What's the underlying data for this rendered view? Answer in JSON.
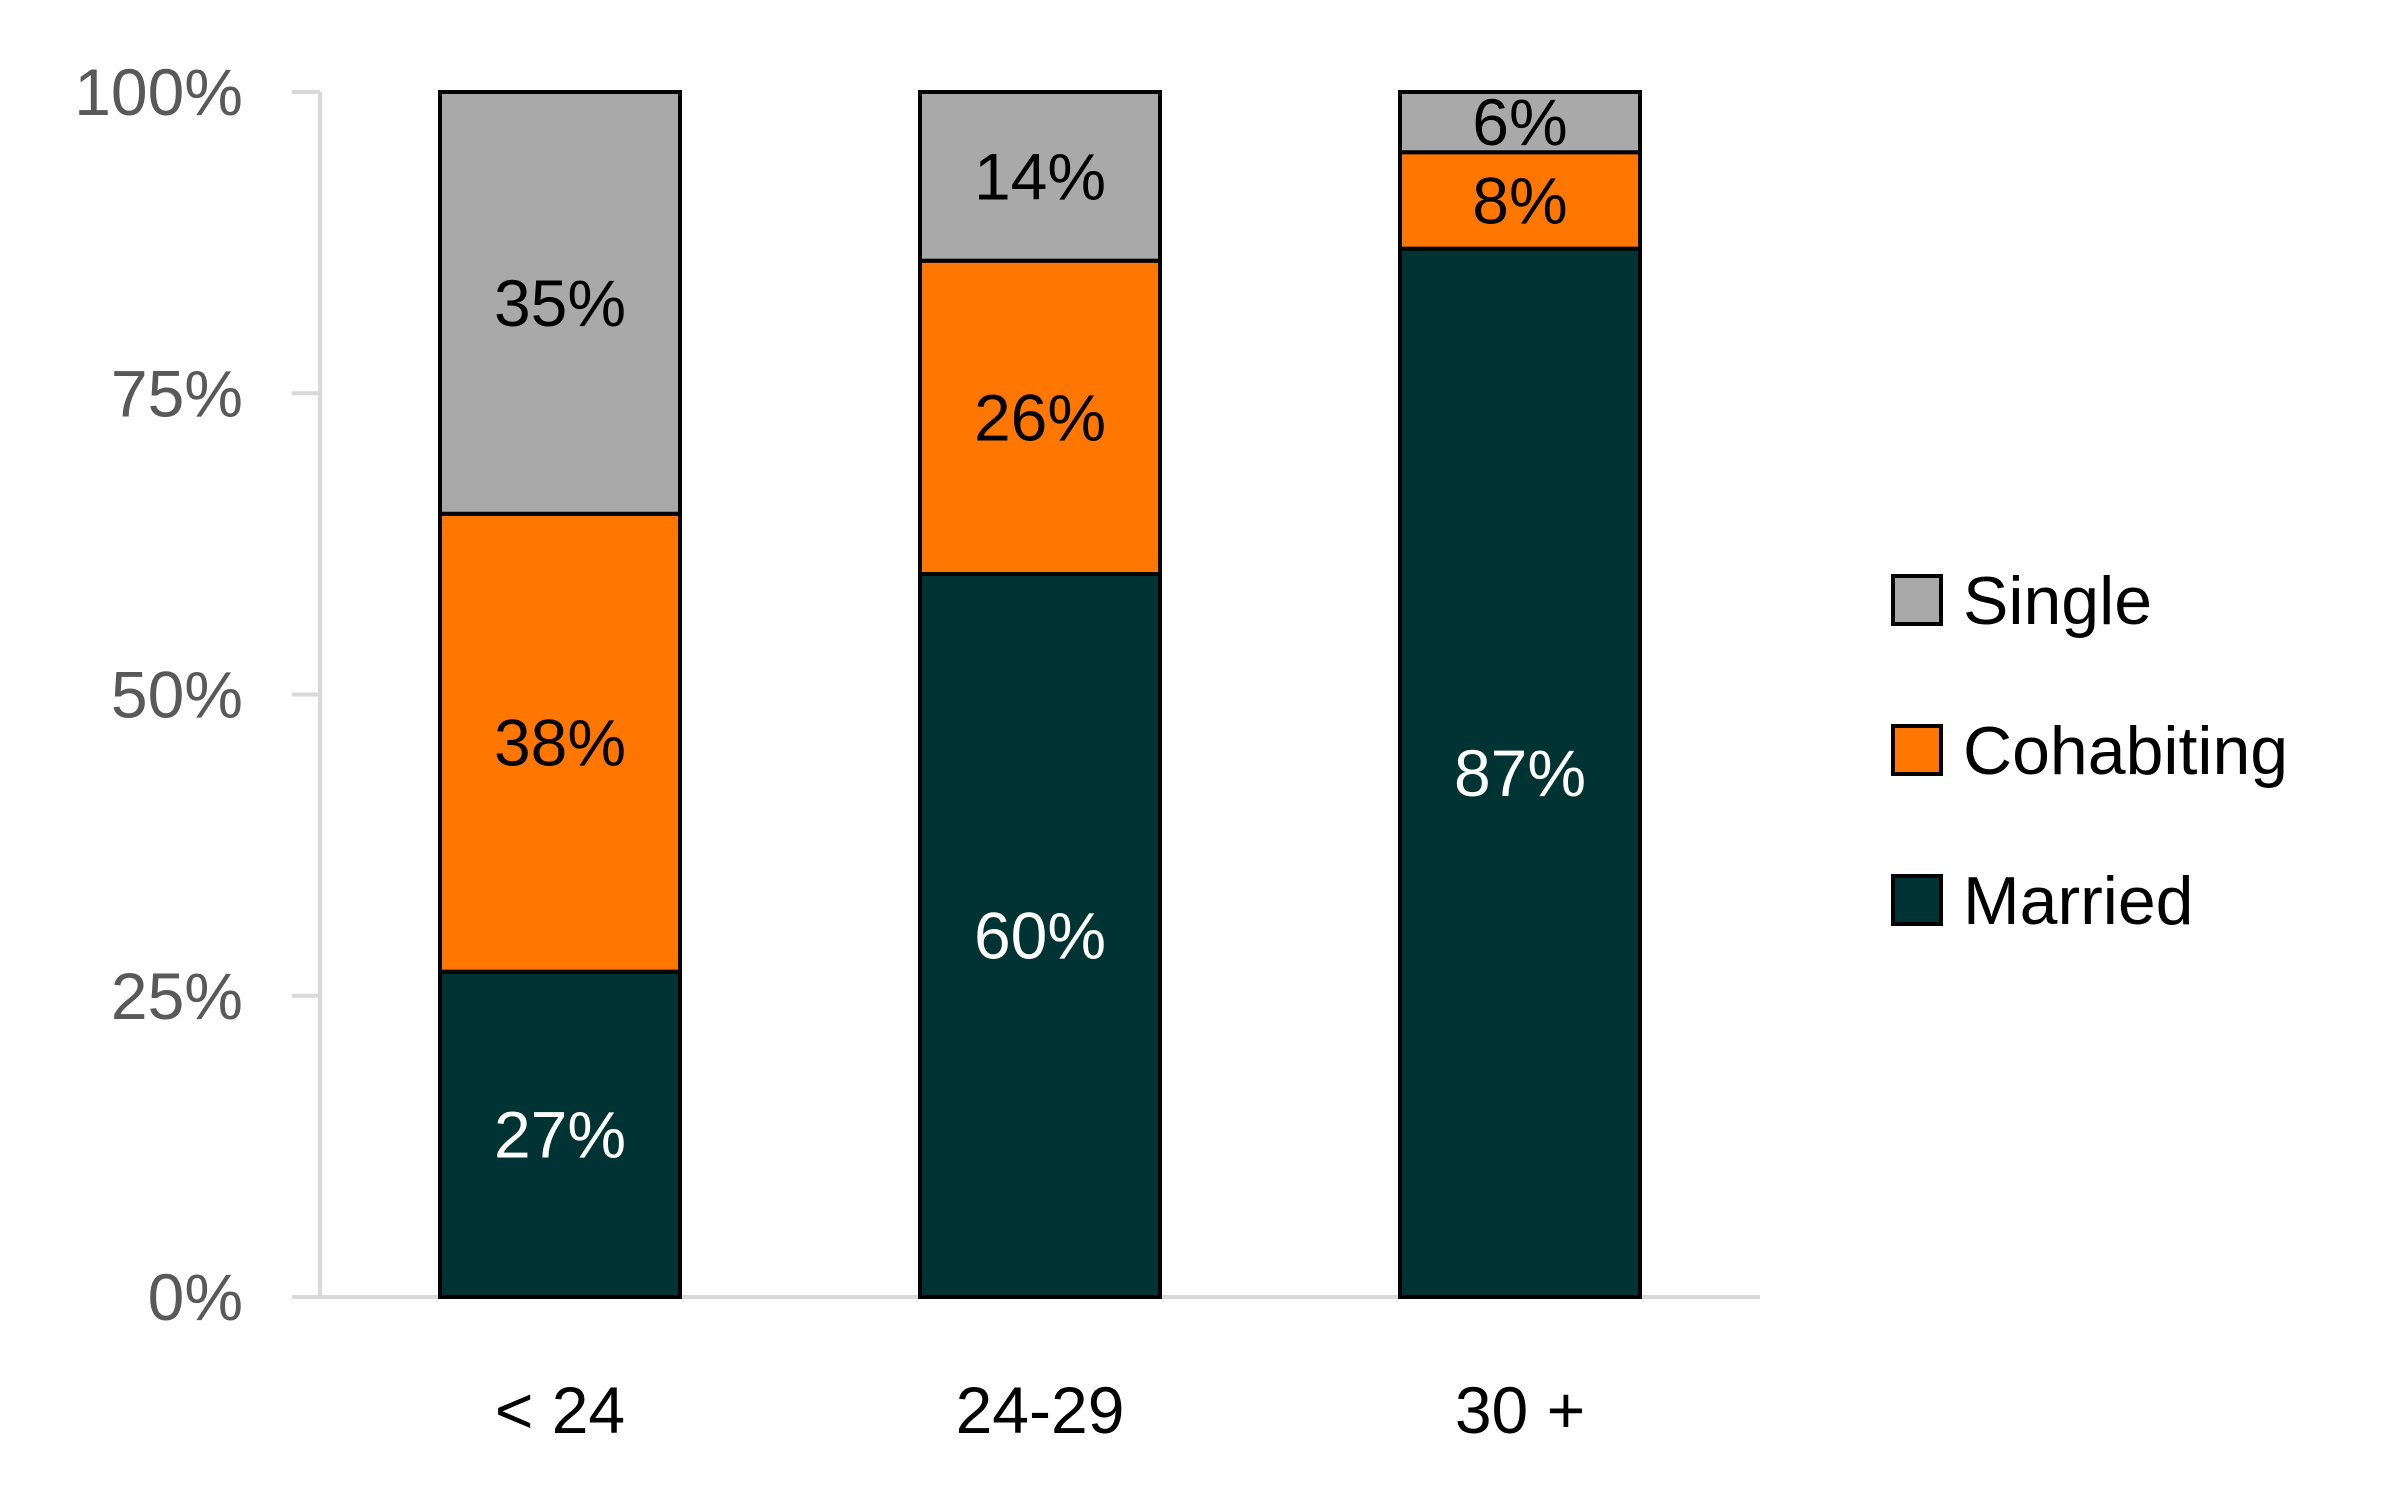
{
  "chart_data": {
    "type": "bar",
    "stacked": true,
    "categories": [
      "< 24",
      "24-29",
      "30 +"
    ],
    "series": [
      {
        "name": "Married",
        "values": [
          27,
          60,
          87
        ],
        "labels": [
          "27%",
          "60%",
          "87%"
        ],
        "color": "#003333",
        "label_color": "#ffffff"
      },
      {
        "name": "Cohabiting",
        "values": [
          38,
          26,
          8
        ],
        "labels": [
          "38%",
          "26%",
          "8%"
        ],
        "color": "#ff7700",
        "label_color": "#000000"
      },
      {
        "name": "Single",
        "values": [
          35,
          14,
          6
        ],
        "labels": [
          "35%",
          "14%",
          "6%"
        ],
        "color": "#a9a9a9",
        "label_color": "#000000"
      }
    ],
    "ylim": [
      0,
      100
    ],
    "yticks": [
      "0%",
      "25%",
      "50%",
      "75%",
      "100%"
    ],
    "ytick_values": [
      0,
      25,
      50,
      75,
      100
    ],
    "grid": false,
    "legend_position": "right",
    "legend_order": [
      "Single",
      "Cohabiting",
      "Married"
    ],
    "axis_color": "#d9d9d9",
    "bar_outline_color": "#000000"
  }
}
